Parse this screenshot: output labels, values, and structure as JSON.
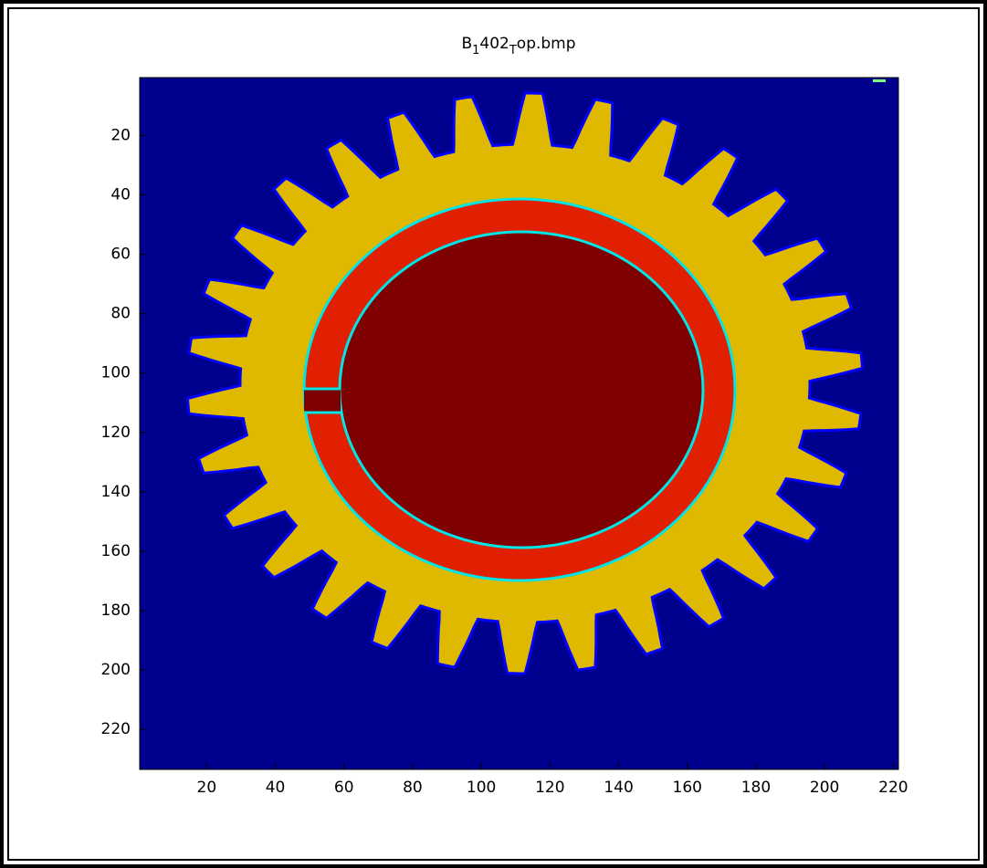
{
  "chart_data": {
    "type": "image",
    "title": [
      {
        "text": "B"
      },
      {
        "text": "1",
        "sub": true
      },
      {
        "text": "402"
      },
      {
        "text": "T",
        "sub": true
      },
      {
        "text": "op.bmp"
      }
    ],
    "xlim": [
      0.5,
      221.5
    ],
    "ylim": [
      0.5,
      233.5
    ],
    "y_reversed": true,
    "xticks": [
      20,
      40,
      60,
      80,
      100,
      120,
      140,
      160,
      180,
      200,
      220
    ],
    "yticks": [
      20,
      40,
      60,
      80,
      100,
      120,
      140,
      160,
      180,
      200,
      220
    ]
  }
}
